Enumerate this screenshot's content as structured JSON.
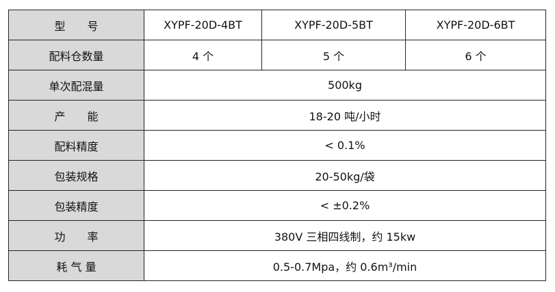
{
  "table": {
    "header": [
      "型　　号",
      "XYPF-20D-4BT",
      "XYPF-20D-5BT",
      "XYPF-20D-6BT"
    ],
    "rows": [
      [
        "配料仓数量",
        "4 个",
        "5 个",
        "6 个"
      ],
      [
        "单次配混量",
        "500kg"
      ],
      [
        "产　　能",
        "18-20 吨/小时"
      ],
      [
        "配料精度",
        "< 0.1%"
      ],
      [
        "包装规格",
        "20-50kg/袋"
      ],
      [
        "包装精度",
        "< ±0.2%"
      ],
      [
        "功　　率",
        "380V 三相四线制，约 15kw"
      ],
      [
        "耗 气 量",
        "0.5-0.7Mpa，约 0.6m³/min"
      ]
    ]
  }
}
